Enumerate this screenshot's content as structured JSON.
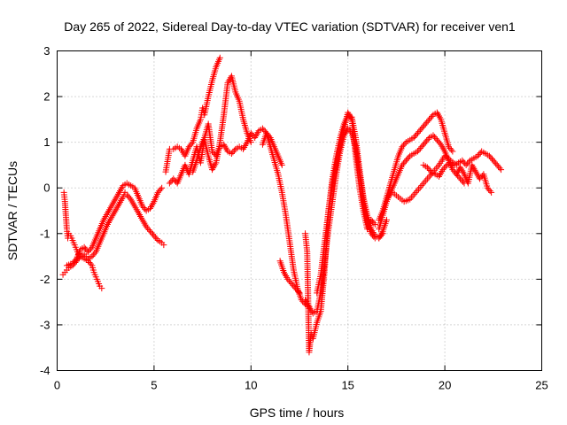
{
  "chart_data": {
    "type": "scatter",
    "title": "Day 265 of 2022, Sidereal Day-to-day VTEC variation (SDTVAR) for receiver ven1",
    "xlabel": "GPS time / hours",
    "ylabel": "SDTVAR / TECUs",
    "xlim": [
      0,
      25
    ],
    "ylim": [
      -4,
      3
    ],
    "xticks": [
      0,
      5,
      10,
      15,
      20,
      25
    ],
    "xtick_labels": [
      "0",
      "5",
      "10",
      "15",
      "20",
      "25"
    ],
    "yticks": [
      -4,
      -3,
      -2,
      -1,
      0,
      1,
      2,
      3
    ],
    "ytick_labels": [
      "-4",
      "-3",
      "-2",
      "-1",
      "0",
      "1",
      "2",
      "3"
    ],
    "grid": true,
    "marker": "+",
    "color": "#ff0000",
    "series": [
      {
        "x": [
          0.35,
          0.4,
          0.45,
          0.5,
          0.55,
          0.6,
          0.7,
          0.8,
          0.9,
          1.0,
          1.1,
          1.2,
          1.4,
          1.6,
          1.8,
          1.9,
          2.0,
          2.1,
          2.2,
          2.3
        ],
        "y": [
          -0.1,
          -0.3,
          -0.6,
          -0.9,
          -1.1,
          -1.0,
          -1.05,
          -1.15,
          -1.25,
          -1.35,
          -1.45,
          -1.5,
          -1.55,
          -1.6,
          -1.7,
          -1.85,
          -1.95,
          -2.05,
          -2.15,
          -2.2
        ]
      },
      {
        "x": [
          0.3,
          0.4,
          0.5,
          0.6,
          0.8,
          1.0,
          1.2,
          1.4,
          1.5,
          1.6,
          1.8,
          2.0,
          2.2,
          2.4,
          2.6,
          2.8,
          3.0,
          3.2,
          3.4,
          3.5,
          3.6,
          3.8,
          4.0,
          4.2,
          4.4,
          4.6,
          4.8,
          5.0,
          5.2,
          5.4,
          5.5
        ],
        "y": [
          -1.9,
          -1.85,
          -1.8,
          -1.75,
          -1.7,
          -1.6,
          -1.5,
          -1.45,
          -1.5,
          -1.55,
          -1.5,
          -1.4,
          -1.2,
          -1.0,
          -0.8,
          -0.65,
          -0.5,
          -0.35,
          -0.2,
          -0.1,
          -0.15,
          -0.25,
          -0.4,
          -0.55,
          -0.7,
          -0.85,
          -0.95,
          -1.05,
          -1.15,
          -1.2,
          -1.25
        ]
      },
      {
        "x": [
          0.5,
          0.8,
          1.0,
          1.2,
          1.4,
          1.6,
          1.8,
          2.0,
          2.2,
          2.4,
          2.6,
          2.8,
          3.0,
          3.2,
          3.4,
          3.6,
          3.8,
          4.0,
          4.2,
          4.4,
          4.6,
          4.8,
          5.0,
          5.2,
          5.4
        ],
        "y": [
          -1.7,
          -1.65,
          -1.55,
          -1.35,
          -1.3,
          -1.4,
          -1.3,
          -1.1,
          -0.9,
          -0.7,
          -0.55,
          -0.4,
          -0.25,
          -0.1,
          0.05,
          0.1,
          0.05,
          0.0,
          -0.2,
          -0.4,
          -0.5,
          -0.45,
          -0.3,
          -0.1,
          0.0
        ]
      },
      {
        "x": [
          5.6,
          5.8,
          6.0,
          6.2,
          6.4,
          6.6,
          6.8,
          7.0,
          7.2,
          7.4,
          7.5,
          7.6,
          7.8,
          8.0,
          8.2,
          8.4
        ],
        "y": [
          0.35,
          0.85,
          0.85,
          0.9,
          0.85,
          0.7,
          0.9,
          1.0,
          1.3,
          1.5,
          1.75,
          1.6,
          2.0,
          2.35,
          2.65,
          2.85
        ]
      },
      {
        "x": [
          5.8,
          6.0,
          6.2,
          6.4,
          6.6,
          6.8,
          7.0,
          7.2,
          7.4,
          7.6,
          7.8,
          8.0,
          8.2,
          8.4,
          8.6,
          8.8,
          9.0,
          9.2,
          9.4,
          9.6,
          9.8,
          10.0
        ],
        "y": [
          0.1,
          0.2,
          0.1,
          0.3,
          0.5,
          0.3,
          0.6,
          0.9,
          0.55,
          1.05,
          0.7,
          0.4,
          0.55,
          1.0,
          1.6,
          2.3,
          2.45,
          2.1,
          1.9,
          1.5,
          1.2,
          1.0
        ]
      },
      {
        "x": [
          7.0,
          7.2,
          7.4,
          7.6,
          7.8,
          8.0,
          8.2,
          8.4,
          8.6,
          8.8,
          9.0,
          9.2,
          9.4,
          9.6,
          9.8,
          10.0,
          10.2,
          10.4,
          10.6,
          10.8,
          11.0,
          11.2,
          11.4,
          11.6
        ],
        "y": [
          0.35,
          0.6,
          0.9,
          1.1,
          1.4,
          0.8,
          0.7,
          0.9,
          0.95,
          0.8,
          0.75,
          0.85,
          0.9,
          0.85,
          1.0,
          1.2,
          1.1,
          1.25,
          1.3,
          1.2,
          1.1,
          0.9,
          0.7,
          0.5
        ]
      },
      {
        "x": [
          10.6,
          10.8,
          11.0,
          11.2,
          11.4,
          11.6,
          11.8,
          12.0,
          12.2,
          12.4,
          12.6,
          12.8,
          13.0
        ],
        "y": [
          0.95,
          1.2,
          0.9,
          0.6,
          0.3,
          -0.1,
          -0.6,
          -1.2,
          -1.8,
          -2.2,
          -2.45,
          -2.55,
          -2.6
        ]
      },
      {
        "x": [
          11.5,
          11.7,
          11.9,
          12.1,
          12.3,
          12.5
        ],
        "y": [
          -1.6,
          -1.85,
          -2.0,
          -2.1,
          -2.2,
          -2.3
        ]
      },
      {
        "x": [
          12.8,
          12.9,
          13.0,
          13.1,
          13.2,
          13.4,
          13.6,
          13.8,
          14.0,
          14.2,
          14.4,
          14.6,
          14.8,
          15.0,
          15.2,
          15.4,
          15.6,
          15.8,
          16.0,
          16.2,
          16.4,
          16.6,
          16.8,
          17.0
        ],
        "y": [
          -1.0,
          -1.4,
          -3.6,
          -3.2,
          -3.3,
          -2.95,
          -2.7,
          -1.8,
          -0.5,
          0.2,
          0.7,
          1.1,
          1.4,
          1.6,
          1.55,
          1.1,
          0.4,
          -0.2,
          -0.6,
          -0.9,
          -1.05,
          -1.1,
          -0.95,
          -0.7
        ]
      },
      {
        "x": [
          12.8,
          13.0,
          13.2,
          13.4,
          13.6,
          13.8,
          14.0,
          14.2,
          14.4,
          14.6,
          14.8,
          15.0,
          15.2,
          15.4,
          15.6,
          15.8,
          16.0,
          16.2,
          16.4,
          16.6,
          16.8
        ],
        "y": [
          -2.45,
          -2.6,
          -2.75,
          -2.7,
          -2.3,
          -1.6,
          -0.9,
          -0.3,
          0.3,
          0.8,
          1.15,
          1.3,
          1.2,
          0.9,
          0.3,
          -0.3,
          -0.75,
          -1.0,
          -1.1,
          -1.1,
          -1.0
        ]
      },
      {
        "x": [
          13.4,
          13.6,
          13.8,
          14.0,
          14.2,
          14.4,
          14.6,
          14.8,
          15.0,
          15.2,
          15.4,
          15.6,
          15.8,
          16.0,
          16.2,
          16.4
        ],
        "y": [
          -2.3,
          -1.9,
          -1.2,
          -0.5,
          0.1,
          0.5,
          0.9,
          1.3,
          1.65,
          1.5,
          0.7,
          0.0,
          -0.5,
          -0.9,
          -0.7,
          -0.8
        ]
      },
      {
        "x": [
          16.6,
          16.8,
          17.0,
          17.2,
          17.4,
          17.6,
          17.8,
          18.0,
          18.2,
          18.4,
          18.6,
          18.8,
          19.0,
          19.2,
          19.4,
          19.6,
          19.8,
          20.0,
          20.2,
          20.4
        ],
        "y": [
          -0.7,
          -0.5,
          -0.2,
          0.1,
          0.4,
          0.7,
          0.9,
          1.0,
          1.05,
          1.1,
          1.2,
          1.3,
          1.4,
          1.5,
          1.6,
          1.65,
          1.5,
          1.2,
          0.9,
          0.8
        ]
      },
      {
        "x": [
          16.6,
          16.8,
          17.0,
          17.2,
          17.4,
          17.6,
          17.8,
          18.0,
          18.2,
          18.4,
          18.6,
          18.8,
          19.0,
          19.2,
          19.4,
          19.6,
          19.8,
          20.0,
          20.2,
          20.4,
          20.6,
          20.8,
          21.0
        ],
        "y": [
          -0.9,
          -0.6,
          -0.3,
          -0.1,
          0.1,
          0.3,
          0.5,
          0.6,
          0.7,
          0.75,
          0.8,
          0.9,
          1.0,
          1.1,
          1.15,
          1.05,
          0.95,
          0.8,
          0.6,
          0.4,
          0.3,
          0.2,
          0.1
        ]
      },
      {
        "x": [
          17.0,
          17.3,
          17.6,
          17.9,
          18.2,
          18.5,
          18.8,
          19.1,
          19.4,
          19.7,
          20.0,
          20.3,
          20.6
        ],
        "y": [
          -0.2,
          -0.1,
          -0.2,
          -0.3,
          -0.25,
          -0.1,
          0.05,
          0.2,
          0.35,
          0.5,
          0.7,
          0.6,
          0.5
        ]
      },
      {
        "x": [
          18.9,
          19.1,
          19.3,
          19.5,
          19.7,
          19.9,
          20.1,
          20.3,
          20.5,
          20.7,
          20.9,
          21.1,
          21.3,
          21.5,
          21.7,
          21.9,
          22.1,
          22.3,
          22.5,
          22.7,
          22.9
        ],
        "y": [
          0.5,
          0.45,
          0.35,
          0.3,
          0.25,
          0.4,
          0.5,
          0.55,
          0.5,
          0.55,
          0.6,
          0.5,
          0.6,
          0.65,
          0.7,
          0.8,
          0.75,
          0.7,
          0.6,
          0.5,
          0.4
        ]
      },
      {
        "x": [
          20.6,
          20.8,
          21.0,
          21.2,
          21.4,
          21.6,
          21.8,
          22.0,
          22.2,
          22.4
        ],
        "y": [
          0.3,
          0.45,
          0.3,
          0.1,
          0.5,
          0.35,
          0.2,
          0.3,
          0.0,
          -0.1
        ]
      }
    ]
  }
}
